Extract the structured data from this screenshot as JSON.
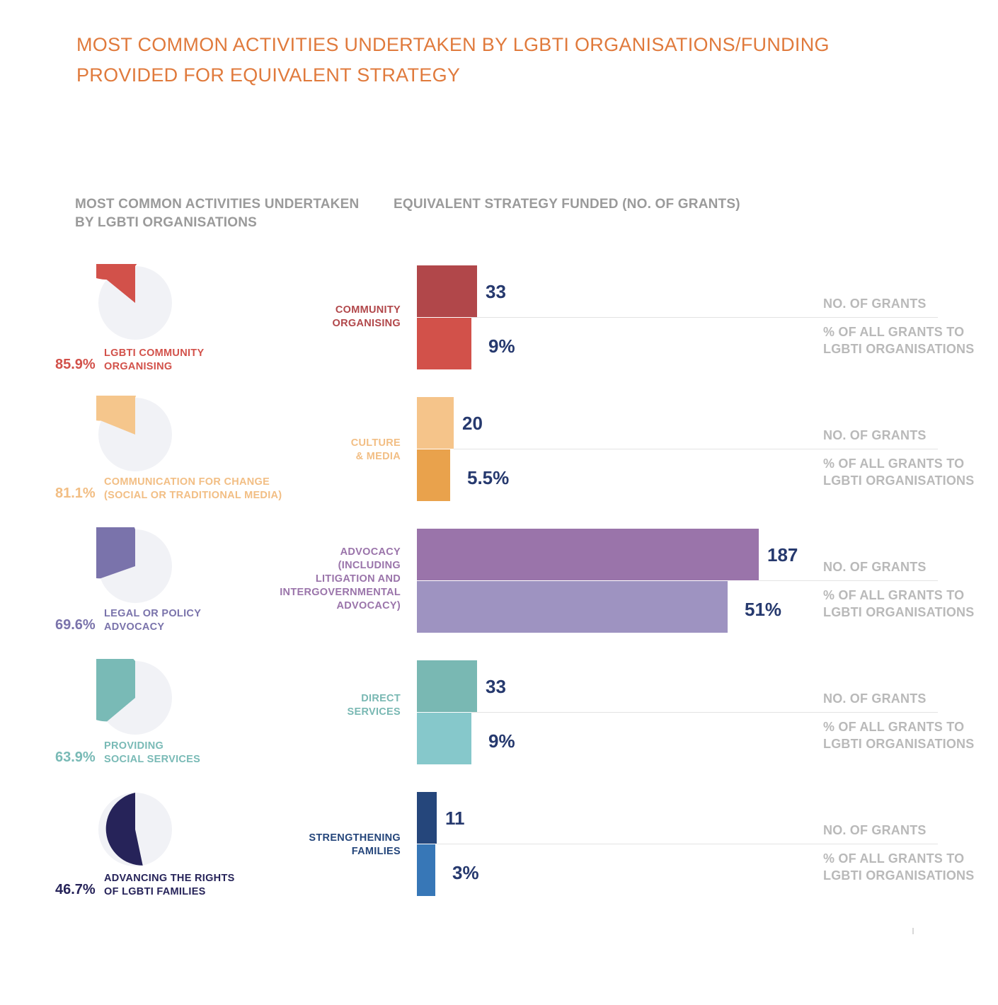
{
  "title": "MOST COMMON ACTIVITIES UNDERTAKEN BY LGBTI ORGANISATIONS/FUNDING PROVIDED FOR EQUIVALENT STRATEGY",
  "left_heading": "MOST COMMON ACTIVITIES UNDERTAKEN BY LGBTI ORGANISATIONS",
  "right_heading": "EQUIVALENT STRATEGY FUNDED  (NO. OF GRANTS)",
  "legend": {
    "grants": "NO. OF GRANTS",
    "percent": "% OF ALL GRANTS TO LGBTI ORGANISATIONS"
  },
  "colors": {
    "title": "#e07a3c",
    "pie_remainder": "#f1f2f6",
    "value_text": "#26396e",
    "legend_text": "#b9b9b9"
  },
  "chart_data": [
    {
      "type": "pie",
      "slices": [
        {
          "activity": "LGBTI COMMUNITY ORGANISING",
          "percent_label": "85.9%",
          "value": 85.9,
          "color": "#d2514a"
        },
        {
          "activity": "COMMUNICATION FOR CHANGE (SOCIAL OR TRADITIONAL MEDIA)",
          "percent_label": "81.1%",
          "value": 81.1,
          "color": "#f5c68c"
        },
        {
          "activity": "LEGAL OR POLICY ADVOCACY",
          "percent_label": "69.6%",
          "value": 69.6,
          "color": "#7a73ab"
        },
        {
          "activity": "PROVIDING SOCIAL SERVICES",
          "percent_label": "63.9%",
          "value": 63.9,
          "color": "#79bab6"
        },
        {
          "activity": "ADVANCING THE RIGHTS OF LGBTI FAMILIES",
          "percent_label": "46.7%",
          "value": 46.7,
          "color": "#262359"
        }
      ]
    },
    {
      "type": "bar",
      "orientation": "horizontal",
      "categories": [
        "COMMUNITY ORGANISING",
        "CULTURE & MEDIA",
        "ADVOCACY (INCLUDING LITIGATION AND INTERGOVERNMENTAL ADVOCACY)",
        "DIRECT SERVICES",
        "STRENGTHENING FAMILIES"
      ],
      "series": [
        {
          "name": "NO. OF GRANTS",
          "values": [
            33,
            20,
            187,
            33,
            11
          ],
          "labels": [
            "33",
            "20",
            "187",
            "33",
            "11"
          ],
          "colors": [
            "#b1474a",
            "#f5c48a",
            "#9a74aa",
            "#79b8b3",
            "#25467b"
          ]
        },
        {
          "name": "% OF ALL GRANTS TO LGBTI ORGANISATIONS",
          "values": [
            9,
            5.5,
            51,
            9,
            3
          ],
          "labels": [
            "9%",
            "5.5%",
            "51%",
            "9%",
            "3%"
          ],
          "colors": [
            "#d2514a",
            "#e9a24c",
            "#9e93c1",
            "#86c8cb",
            "#3777b7"
          ]
        }
      ],
      "category_colors": [
        "#b1474a",
        "#f5c48a",
        "#9a74aa",
        "#79b8b3",
        "#25467b"
      ]
    }
  ]
}
